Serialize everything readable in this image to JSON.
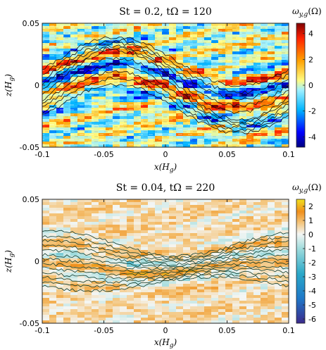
{
  "chart_data": [
    {
      "type": "heatmap",
      "title": "St = 0.2, tΩ = 120",
      "xlabel": "x(H_g)",
      "ylabel": "z(H_g)",
      "xlim": [
        -0.1,
        0.1
      ],
      "ylim": [
        -0.05,
        0.05
      ],
      "xticks": [
        -0.1,
        -0.05,
        0,
        0.05,
        0.1
      ],
      "xtick_labels": [
        "-0.1",
        "-0.05",
        "0",
        "0.05",
        "0.1"
      ],
      "yticks": [
        -0.05,
        0,
        0.05
      ],
      "ytick_labels": [
        "-0.05",
        "0",
        "0.05"
      ],
      "colorbar": {
        "label": "ω_{y,g}(Ω)",
        "range": [
          -4.8,
          4.8
        ],
        "ticks": [
          4,
          2,
          0,
          -2,
          -4
        ],
        "tick_labels": [
          "4",
          "2",
          "0",
          "-2",
          "-4"
        ],
        "colormap": "jet",
        "colors": [
          "#00007f",
          "#0000ff",
          "#00b4ff",
          "#9ff0ff",
          "#fffb80",
          "#ffa000",
          "#ff2000",
          "#7f0000"
        ]
      },
      "contours": "dust density contours (black) forming a sinusoidal, folding layer"
    },
    {
      "type": "heatmap",
      "title": "St = 0.04, tΩ = 220",
      "xlabel": "x(H_g)",
      "ylabel": "z(H_g)",
      "xlim": [
        -0.1,
        0.1
      ],
      "ylim": [
        -0.05,
        0.05
      ],
      "xticks": [
        -0.1,
        -0.05,
        0,
        0.05,
        0.1
      ],
      "xtick_labels": [
        "-0.1",
        "-0.05",
        "0",
        "0.05",
        "0.1"
      ],
      "yticks": [
        -0.05,
        0,
        0.05
      ],
      "ytick_labels": [
        "-0.05",
        "0",
        "0.05"
      ],
      "colorbar": {
        "label": "ω_{y,g}(Ω)",
        "range": [
          -6.3,
          2.5
        ],
        "ticks": [
          2,
          1,
          0,
          -1,
          -2,
          -3,
          -4,
          -5,
          -6
        ],
        "tick_labels": [
          "2",
          "1",
          "0",
          "-1",
          "-2",
          "-3",
          "-4",
          "-5",
          "-6"
        ],
        "colormap": "parula-diverging",
        "colors": [
          "#3b2a8c",
          "#1f78c8",
          "#2aa8c8",
          "#9edbdc",
          "#f4f6f4",
          "#f4c070",
          "#f08f1c",
          "#f0e020"
        ]
      },
      "contours": "dust density contours (dark green) forming a flattened layer"
    }
  ]
}
